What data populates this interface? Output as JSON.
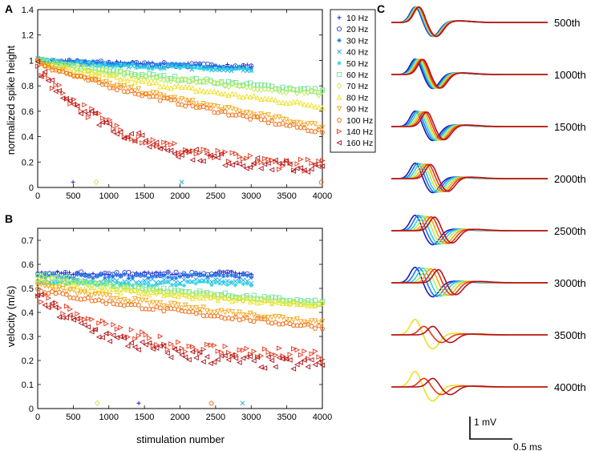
{
  "chart_data": [
    {
      "panel": "A",
      "type": "scatter",
      "xlabel": "",
      "ylabel": "normalized spike height",
      "xlim": [
        0,
        4000
      ],
      "ylim": [
        0,
        1.4
      ],
      "xticks": [
        0,
        500,
        1000,
        1500,
        2000,
        2500,
        3000,
        3500,
        4000
      ],
      "yticks": [
        0,
        0.2,
        0.4,
        0.6,
        0.8,
        1,
        1.2,
        1.4
      ],
      "series": [
        {
          "name": "10 Hz",
          "end_x": 3000,
          "start": 1.0,
          "end": 0.95
        },
        {
          "name": "20 Hz",
          "end_x": 3000,
          "start": 1.0,
          "end": 0.95
        },
        {
          "name": "30 Hz",
          "end_x": 3000,
          "start": 1.0,
          "end": 0.94
        },
        {
          "name": "40 Hz",
          "end_x": 3000,
          "start": 1.0,
          "end": 0.93
        },
        {
          "name": "50 Hz",
          "end_x": 3000,
          "start": 1.0,
          "end": 0.92
        },
        {
          "name": "60 Hz",
          "end_x": 4000,
          "start": 1.0,
          "end": 0.76
        },
        {
          "name": "70 Hz",
          "end_x": 4000,
          "start": 1.0,
          "end": 0.74
        },
        {
          "name": "80 Hz",
          "end_x": 4000,
          "start": 1.0,
          "end": 0.64
        },
        {
          "name": "90 Hz",
          "end_x": 4000,
          "start": 1.0,
          "end": 0.48
        },
        {
          "name": "100 Hz",
          "end_x": 4000,
          "start": 1.0,
          "end": 0.44
        },
        {
          "name": "140 Hz",
          "end_x": 4000,
          "start": 0.95,
          "end": 0.17
        },
        {
          "name": "160 Hz",
          "end_x": 4000,
          "start": 0.95,
          "end": 0.15
        }
      ]
    },
    {
      "panel": "B",
      "type": "scatter",
      "xlabel": "stimulation number",
      "ylabel": "velocity (m/s)",
      "xlim": [
        0,
        4000
      ],
      "ylim": [
        0,
        0.75
      ],
      "xticks": [
        0,
        500,
        1000,
        1500,
        2000,
        2500,
        3000,
        3500,
        4000
      ],
      "yticks": [
        0,
        0.1,
        0.2,
        0.3,
        0.4,
        0.5,
        0.6,
        0.7
      ],
      "series": [
        {
          "name": "10 Hz",
          "end_x": 3000,
          "start": 0.56,
          "end": 0.56
        },
        {
          "name": "20 Hz",
          "end_x": 3000,
          "start": 0.56,
          "end": 0.56
        },
        {
          "name": "30 Hz",
          "end_x": 3000,
          "start": 0.55,
          "end": 0.55
        },
        {
          "name": "40 Hz",
          "end_x": 3000,
          "start": 0.53,
          "end": 0.53
        },
        {
          "name": "50 Hz",
          "end_x": 3000,
          "start": 0.52,
          "end": 0.52
        },
        {
          "name": "60 Hz",
          "end_x": 4000,
          "start": 0.56,
          "end": 0.44
        },
        {
          "name": "70 Hz",
          "end_x": 4000,
          "start": 0.55,
          "end": 0.43
        },
        {
          "name": "80 Hz",
          "end_x": 4000,
          "start": 0.53,
          "end": 0.43
        },
        {
          "name": "90 Hz",
          "end_x": 4000,
          "start": 0.52,
          "end": 0.36
        },
        {
          "name": "100 Hz",
          "end_x": 4000,
          "start": 0.5,
          "end": 0.34
        },
        {
          "name": "140 Hz",
          "end_x": 4000,
          "start": 0.48,
          "end": 0.22
        },
        {
          "name": "160 Hz",
          "end_x": 4000,
          "start": 0.46,
          "end": 0.18
        }
      ]
    },
    {
      "panel": "C",
      "type": "line",
      "trace_labels": [
        "500th",
        "1000th",
        "1500th",
        "2000th",
        "2500th",
        "3000th",
        "3500th",
        "4000th"
      ],
      "scale_bar_y": "1 mV",
      "scale_bar_x": "0.5 ms"
    }
  ],
  "legend": [
    "10 Hz",
    "20 Hz",
    "30 Hz",
    "40 Hz",
    "50 Hz",
    "60 Hz",
    "70 Hz",
    "80 Hz",
    "90 Hz",
    "100 Hz",
    "140 Hz",
    "160 Hz"
  ],
  "colors": [
    "#1a1ab8",
    "#1f3fd6",
    "#1f78e8",
    "#12a7e6",
    "#2ad4e0",
    "#6fe39b",
    "#b9ee55",
    "#eee020",
    "#f7a618",
    "#f26d15",
    "#e5361a",
    "#b0141a"
  ],
  "markers": [
    "+",
    "o",
    "*",
    "x",
    "*",
    "s",
    "d",
    "^",
    "v",
    "p",
    ">",
    "<"
  ]
}
